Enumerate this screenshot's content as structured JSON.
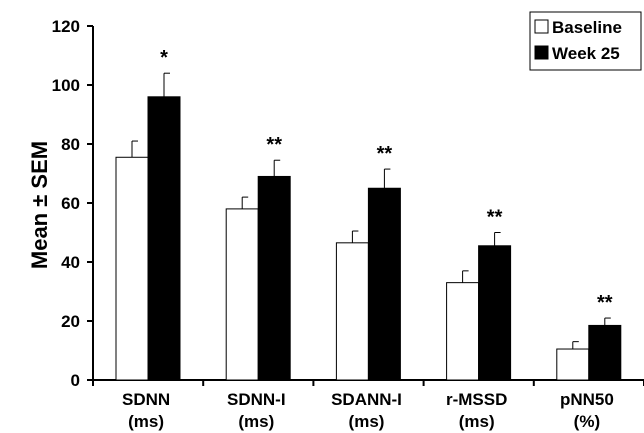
{
  "chart_data": {
    "type": "bar",
    "title": "",
    "xlabel": "",
    "ylabel": "Mean ± SEM",
    "ylim": [
      0,
      120
    ],
    "yticks": [
      "0",
      "20",
      "40",
      "60",
      "80",
      "100",
      "120"
    ],
    "categories": [
      [
        "SDNN",
        "(ms)"
      ],
      [
        "SDNN-I",
        "(ms)"
      ],
      [
        "SDANN-I",
        "(ms)"
      ],
      [
        "r-MSSD",
        "(ms)"
      ],
      [
        "pNN50",
        "(%)"
      ]
    ],
    "series": [
      {
        "name": "Baseline",
        "color": "#ffffff",
        "values": [
          75.5,
          58,
          46.5,
          33,
          10.5
        ],
        "errors": [
          5.5,
          4,
          4,
          4,
          2.5
        ]
      },
      {
        "name": "Week 25",
        "color": "#000000",
        "values": [
          96,
          69,
          65,
          45.5,
          18.5
        ],
        "errors": [
          8,
          5.5,
          6.5,
          4.5,
          2.5
        ]
      }
    ],
    "annotations": [
      "*",
      "**",
      "**",
      "**",
      "**"
    ],
    "legend_position": "top-right",
    "grid": false
  }
}
